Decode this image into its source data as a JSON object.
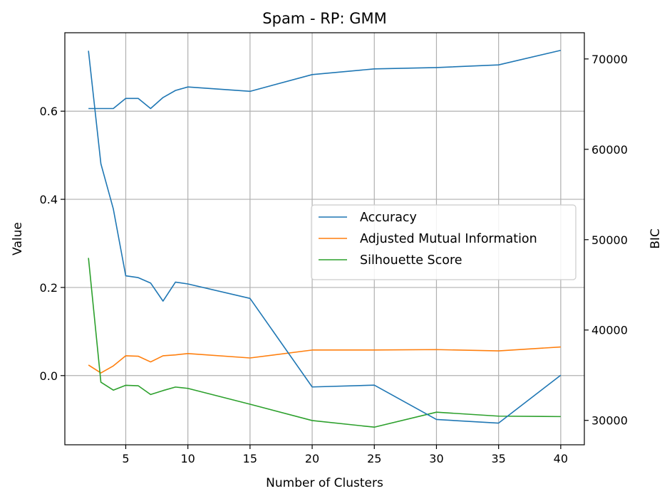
{
  "chart_data": {
    "type": "line",
    "title": "Spam - RP: GMM",
    "xlabel": "Number of Clusters",
    "ylabel": "Value",
    "ylabel_right": "BIC",
    "xlim": [
      0.1,
      41.9
    ],
    "ylim": [
      -0.157,
      0.778
    ],
    "ylim_right": [
      27300,
      72900
    ],
    "x_ticks": [
      5,
      10,
      15,
      20,
      25,
      30,
      35,
      40
    ],
    "y_ticks": [
      0.0,
      0.2,
      0.4,
      0.6
    ],
    "y_tick_labels": [
      "0.0",
      "0.2",
      "0.4",
      "0.6"
    ],
    "y_ticks_right": [
      30000,
      40000,
      50000,
      60000,
      70000
    ],
    "grid": true,
    "legend_position": "center-right",
    "x": [
      2,
      3,
      4,
      5,
      6,
      7,
      8,
      9,
      10,
      15,
      20,
      25,
      30,
      35,
      40
    ],
    "series": [
      {
        "name": "Accuracy",
        "axis": "left",
        "color": "#1f77b4",
        "values": [
          0.606,
          0.606,
          0.606,
          0.629,
          0.629,
          0.606,
          0.631,
          0.647,
          0.655,
          0.645,
          0.683,
          0.696,
          0.699,
          0.705,
          0.738
        ]
      },
      {
        "name": "Adjusted Mutual Information",
        "axis": "left",
        "color": "#ff7f0e",
        "values": [
          0.024,
          0.006,
          0.022,
          0.045,
          0.044,
          0.031,
          0.045,
          0.047,
          0.05,
          0.04,
          0.058,
          0.058,
          0.059,
          0.056,
          0.065
        ]
      },
      {
        "name": "Silhouette Score",
        "axis": "left",
        "color": "#2ca02c",
        "values": [
          0.267,
          -0.015,
          -0.033,
          -0.022,
          -0.023,
          -0.043,
          -0.034,
          -0.026,
          -0.029,
          -0.065,
          -0.102,
          -0.117,
          -0.083,
          -0.092,
          -0.093
        ]
      },
      {
        "name": "",
        "axis": "right",
        "color": "#1f77b4",
        "values": [
          70900,
          58400,
          53400,
          46000,
          45800,
          45200,
          43200,
          45300,
          45100,
          43500,
          33700,
          33900,
          30100,
          29700,
          35000
        ]
      }
    ]
  }
}
